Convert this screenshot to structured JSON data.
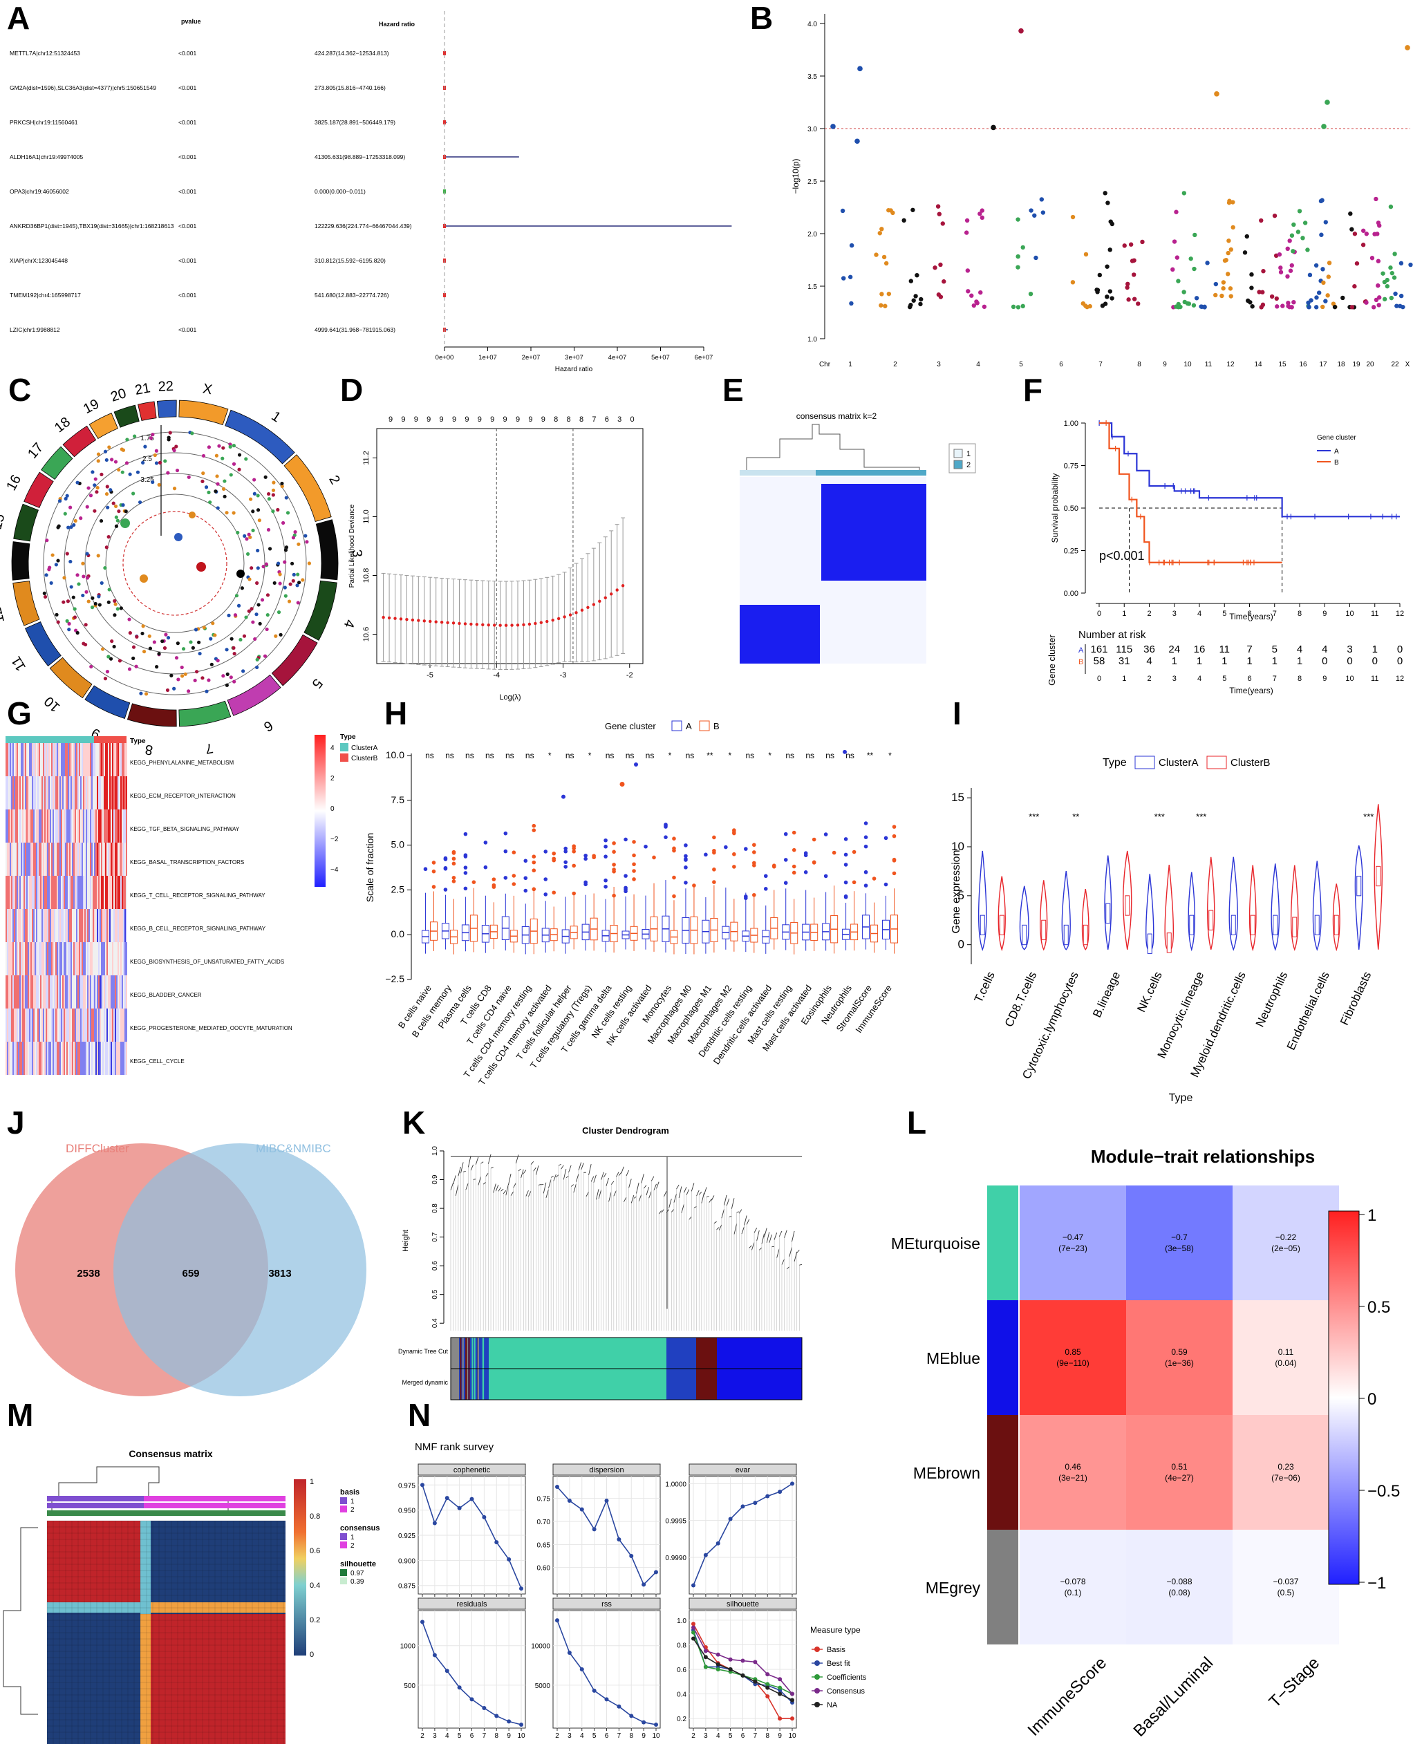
{
  "panel_labels": [
    "A",
    "B",
    "C",
    "D",
    "E",
    "F",
    "G",
    "H",
    "I",
    "J",
    "K",
    "L",
    "M",
    "N"
  ],
  "chart_data": [
    {
      "id": "A",
      "type": "table",
      "columns": [
        "",
        "pvalue",
        "Hazard ratio"
      ],
      "rows": [
        {
          "gene": "METTL7A|chr12:51324453",
          "pvalue": "<0.001",
          "hr": "424.287(14.362−12534.813)",
          "est": 424,
          "hi": 12534
        },
        {
          "gene": "GM2A(dist=1596),SLC36A3(dist=4377)|chr5:150651549",
          "pvalue": "<0.001",
          "hr": "273.805(15.816−4740.166)",
          "est": 273,
          "hi": 4740
        },
        {
          "gene": "PRKCSH|chr19:11560461",
          "pvalue": "<0.001",
          "hr": "3825.187(28.891−506449.179)",
          "est": 3825,
          "hi": 506449
        },
        {
          "gene": "ALDH16A1|chr19:49974005",
          "pvalue": "<0.001",
          "hr": "41305.631(98.889−17253318.099)",
          "est": 41305,
          "hi": 17253318
        },
        {
          "gene": "OPA3|chr19:46056002",
          "pvalue": "<0.001",
          "hr": "0.000(0.000−0.011)",
          "est": 0,
          "hi": 0.011
        },
        {
          "gene": "ANKRD36BP1(dist=1945),TBX19(dist=31665)|chr1:168218613",
          "pvalue": "<0.001",
          "hr": "122229.636(224.774−66467044.439)",
          "est": 122229,
          "hi": 66467044
        },
        {
          "gene": "XIAP|chrX:123045448",
          "pvalue": "<0.001",
          "hr": "310.812(15.592−6195.820)",
          "est": 310,
          "hi": 6195
        },
        {
          "gene": "TMEM192|chr4:165998717",
          "pvalue": "<0.001",
          "hr": "541.680(12.883−22774.726)",
          "est": 541,
          "hi": 22774
        },
        {
          "gene": "LZIC|chr1:9988812",
          "pvalue": "<0.001",
          "hr": "4999.641(31.968−781915.063)",
          "est": 4999,
          "hi": 781915
        }
      ],
      "x_ticks": [
        "0e+00",
        "1e+07",
        "2e+07",
        "3e+07",
        "4e+07",
        "5e+07",
        "6e+07"
      ],
      "x_range": [
        0,
        60000000
      ],
      "xlabel": "Hazard ratio"
    },
    {
      "id": "B",
      "type": "scatter",
      "ylabel": "−log10(p)",
      "y_ticks": [
        "1.0",
        "1.5",
        "2.0",
        "2.5",
        "3.0",
        "3.5",
        "4.0"
      ],
      "y_range": [
        1.0,
        4.0
      ],
      "threshold": 3.0,
      "x_ticks": [
        "Chr",
        "1",
        "2",
        "3",
        "4",
        "5",
        "6",
        "7",
        "8",
        "9",
        "10",
        "11",
        "12",
        "14",
        "15",
        "16",
        "17",
        "18",
        "19",
        "20",
        "22",
        "X"
      ],
      "colors": [
        "#1f4fad",
        "#e08a1e",
        "#111111",
        "#a6143c",
        "#b8228f",
        "#3aa655"
      ]
    },
    {
      "id": "C",
      "type": "scatter",
      "chromosomes": [
        "1",
        "2",
        "3",
        "4",
        "5",
        "6",
        "7",
        "8",
        "9",
        "10",
        "11",
        "12",
        "14",
        "15",
        "16",
        "17",
        "18",
        "19",
        "20",
        "21",
        "22",
        "X"
      ],
      "ring_labels": [
        "1.75",
        "2.5",
        "3.25"
      ]
    },
    {
      "id": "D",
      "type": "line",
      "top_ticks": [
        "9",
        "9",
        "9",
        "9",
        "9",
        "9",
        "9",
        "9",
        "9",
        "9",
        "9",
        "9",
        "9",
        "8",
        "8",
        "8",
        "7",
        "6",
        "3",
        "0"
      ],
      "ylabel": "Partial Likelihood Deviance",
      "xlabel": "Log(λ)",
      "y_ticks": [
        "10.6",
        "10.8",
        "11.0",
        "11.2"
      ],
      "y_range": [
        10.5,
        11.3
      ],
      "x_ticks": [
        "-5",
        "-4",
        "-3",
        "-2"
      ],
      "x_range": [
        -5.8,
        -1.8
      ],
      "vlines": [
        -4.0,
        -2.85
      ],
      "min_value": 10.63
    },
    {
      "id": "E",
      "type": "heatmap",
      "title": "consensus matrix k=2",
      "legend": [
        "1",
        "2"
      ]
    },
    {
      "id": "F",
      "type": "line",
      "ylabel": "Survival probability",
      "xlabel": "Time(years)",
      "y_ticks": [
        "0.00",
        "0.25",
        "0.50",
        "0.75",
        "1.00"
      ],
      "x_ticks": [
        "0",
        "1",
        "2",
        "3",
        "4",
        "5",
        "6",
        "7",
        "8",
        "9",
        "10",
        "11",
        "12"
      ],
      "x_range": [
        0,
        12
      ],
      "pvalue": "p<0.001",
      "legend_title": "Gene cluster",
      "series": [
        {
          "name": "A",
          "color": "#2b35d6",
          "t": [
            0,
            0.5,
            1,
            1.5,
            2,
            3,
            4,
            5,
            7.3,
            7.3,
            12
          ],
          "s": [
            1,
            0.92,
            0.82,
            0.72,
            0.63,
            0.6,
            0.56,
            0.56,
            0.56,
            0.45,
            0.45
          ]
        },
        {
          "name": "B",
          "color": "#f0541e",
          "t": [
            0,
            0.4,
            0.8,
            1.2,
            1.5,
            1.8,
            2,
            7.3
          ],
          "s": [
            1,
            0.85,
            0.7,
            0.55,
            0.45,
            0.3,
            0.18,
            0.18
          ]
        }
      ],
      "risk_title": "Number at risk",
      "risk_ylabel": "Gene cluster",
      "risk": {
        "A": [
          "161",
          "115",
          "36",
          "24",
          "16",
          "11",
          "7",
          "5",
          "4",
          "4",
          "3",
          "1",
          "0"
        ],
        "B": [
          "58",
          "31",
          "4",
          "1",
          "1",
          "1",
          "1",
          "1",
          "1",
          "0",
          "0",
          "0",
          "0"
        ]
      },
      "risk_xlabel": "Time(years)"
    },
    {
      "id": "G",
      "type": "heatmap",
      "annotation": "Type",
      "rows": [
        "KEGG_PHENYLALANINE_METABOLISM",
        "KEGG_ECM_RECEPTOR_INTERACTION",
        "KEGG_TGF_BETA_SIGNALING_PATHWAY",
        "KEGG_BASAL_TRANSCRIPTION_FACTORS",
        "KEGG_T_CELL_RECEPTOR_SIGNALING_PATHWAY",
        "KEGG_B_CELL_RECEPTOR_SIGNALING_PATHWAY",
        "KEGG_BIOSYNTHESIS_OF_UNSATURATED_FATTY_ACIDS",
        "KEGG_BLADDER_CANCER",
        "KEGG_PROGESTERONE_MEDIATED_OOCYTE_MATURATION",
        "KEGG_CELL_CYCLE"
      ],
      "legend_title": "Type",
      "legend": [
        {
          "name": "ClusterA",
          "color": "#5cc8c0"
        },
        {
          "name": "ClusterB",
          "color": "#f0504a"
        }
      ],
      "scale": [
        "4",
        "2",
        "0",
        "−2",
        "−4"
      ]
    },
    {
      "id": "H",
      "type": "bar",
      "subtype": "boxplot",
      "legend_title": "Gene cluster",
      "legend": [
        "A",
        "B"
      ],
      "ylabel": "Scale of fraction",
      "y_ticks": [
        "−2.5",
        "0.0",
        "2.5",
        "5.0",
        "7.5",
        "10.0"
      ],
      "y_range": [
        -2.5,
        10.0
      ],
      "categories": [
        "B cells naive",
        "B cells memory",
        "Plasma cells",
        "T cells CD8",
        "T cells CD4 naive",
        "T cells CD4 memory resting",
        "T cells CD4 memory activated",
        "T cells follicular helper",
        "T cells regulatory (Tregs)",
        "T cells gamma delta",
        "NK cells resting",
        "NK cells activated",
        "Monocytes",
        "Macrophages M0",
        "Macrophages M1",
        "Macrophages M2",
        "Dendritic cells resting",
        "Dendritic cells activated",
        "Mast cells resting",
        "Mast cells activated",
        "Eosinophils",
        "Neutrophils",
        "StromalScore",
        "ImmuneScore"
      ],
      "sig": [
        "ns",
        "ns",
        "ns",
        "ns",
        "ns",
        "ns",
        "*",
        "ns",
        "*",
        "ns",
        "ns",
        "ns",
        "*",
        "ns",
        "**",
        "*",
        "ns",
        "*",
        "ns",
        "ns",
        "ns",
        "ns",
        "**",
        "*"
      ]
    },
    {
      "id": "I",
      "type": "bar",
      "subtype": "violin",
      "legend_title": "Type",
      "legend": [
        {
          "name": "ClusterA",
          "color": "#2b35d6"
        },
        {
          "name": "ClusterB",
          "color": "#e8252a"
        }
      ],
      "ylabel": "Gene expression",
      "xlabel": "Type",
      "y_ticks": [
        "0",
        "5",
        "10",
        "15"
      ],
      "y_range": [
        -2,
        16
      ],
      "categories": [
        "T.cells",
        "CD8.T.cells",
        "Cytotoxic.lymphocytes",
        "B.lineage",
        "NK.cells",
        "Monocytic.lineage",
        "Myeloid.dendritic.cells",
        "Neutrophils",
        "Endothelial.cells",
        "Fibroblasts"
      ],
      "sig": [
        "",
        "***",
        "**",
        "",
        "***",
        "***",
        "",
        "",
        "",
        "***"
      ],
      "medianA": [
        2.0,
        1.0,
        1.0,
        3.2,
        0.1,
        2.0,
        2.0,
        2.0,
        2.0,
        6.0
      ],
      "medianB": [
        2.0,
        1.5,
        1.0,
        4.0,
        0.2,
        2.5,
        2.0,
        1.8,
        2.0,
        7.0
      ]
    },
    {
      "id": "J",
      "type": "other",
      "subtype": "venn",
      "sets": [
        {
          "name": "DIFFCluster",
          "only": "2538",
          "color": "#e8807a"
        },
        {
          "name": "MIBC&NMIBC",
          "only": "3813",
          "color": "#8fbfe0"
        }
      ],
      "overlap": "659"
    },
    {
      "id": "K",
      "type": "other",
      "subtype": "dendrogram",
      "title": "Cluster Dendrogram",
      "ylabel": "Height",
      "y_ticks": [
        "0.4",
        "0.5",
        "0.6",
        "0.7",
        "0.8",
        "0.9",
        "1.0"
      ],
      "track_labels": [
        "Dynamic Tree Cut",
        "Merged dynamic"
      ]
    },
    {
      "id": "L",
      "type": "heatmap",
      "title": "Module−trait relationships",
      "rows": [
        "MEturquoise",
        "MEblue",
        "MEbrown",
        "MEgrey"
      ],
      "row_colors": [
        "#40d0a8",
        "#1010e8",
        "#6b1010",
        "#808080"
      ],
      "columns": [
        "ImmuneScore",
        "Basal/Luminal",
        "T−Stage"
      ],
      "values": [
        [
          -0.47,
          -0.7,
          -0.22
        ],
        [
          0.85,
          0.59,
          0.11
        ],
        [
          0.46,
          0.51,
          0.23
        ],
        [
          -0.078,
          -0.088,
          -0.037
        ]
      ],
      "labels": [
        [
          "−0.47",
          "(7e−23)",
          "−0.7",
          "(3e−58)",
          "−0.22",
          "(2e−05)"
        ],
        [
          "0.85",
          "(9e−110)",
          "0.59",
          "(1e−36)",
          "0.11",
          "(0.04)"
        ],
        [
          "0.46",
          "(3e−21)",
          "0.51",
          "(4e−27)",
          "0.23",
          "(7e−06)"
        ],
        [
          "−0.078",
          "(0.1)",
          "−0.088",
          "(0.08)",
          "−0.037",
          "(0.5)"
        ]
      ],
      "scale": [
        "1",
        "0.5",
        "0",
        "−0.5",
        "−1"
      ]
    },
    {
      "id": "M",
      "type": "heatmap",
      "title": "Consensus matrix",
      "scale": [
        "1",
        "0.8",
        "0.6",
        "0.4",
        "0.2",
        "0"
      ],
      "legends": [
        {
          "title": "basis",
          "items": [
            {
              "name": "1",
              "color": "#7f4fd0"
            },
            {
              "name": "2",
              "color": "#e040e0"
            }
          ]
        },
        {
          "title": "consensus",
          "items": [
            {
              "name": "1",
              "color": "#7f4fd0"
            },
            {
              "name": "2",
              "color": "#e040e0"
            }
          ]
        },
        {
          "title": "silhouette",
          "items": [
            {
              "name": "0.97",
              "color": "#1f7a3a"
            },
            {
              "name": "0.39",
              "color": "#c8ecd0"
            }
          ]
        }
      ]
    },
    {
      "id": "N",
      "type": "line",
      "title": "NMF rank survey",
      "x": [
        2,
        3,
        4,
        5,
        6,
        7,
        8,
        9,
        10
      ],
      "facets": [
        {
          "name": "cophenetic",
          "y_ticks": [
            "0.875",
            "0.900",
            "0.925",
            "0.950",
            "0.975"
          ],
          "y_range": [
            0.87,
            0.98
          ],
          "values": [
            0.975,
            0.937,
            0.962,
            0.952,
            0.961,
            0.943,
            0.918,
            0.901,
            0.872
          ]
        },
        {
          "name": "dispersion",
          "y_ticks": [
            "0.60",
            "0.65",
            "0.70",
            "0.75"
          ],
          "y_range": [
            0.55,
            0.79
          ],
          "values": [
            0.775,
            0.745,
            0.726,
            0.683,
            0.745,
            0.661,
            0.625,
            0.563,
            0.59
          ]
        },
        {
          "name": "evar",
          "y_ticks": [
            "0.9990",
            "0.9995",
            "1.0000"
          ],
          "y_range": [
            0.99855,
            1.00005
          ],
          "values": [
            0.99862,
            0.99903,
            0.99919,
            0.99952,
            0.99969,
            0.99974,
            0.99983,
            0.99989,
            1.0
          ]
        },
        {
          "name": "residuals",
          "y_ticks": [
            "500",
            "1000"
          ],
          "y_range": [
            0,
            1400
          ],
          "values": [
            1300,
            880,
            680,
            470,
            320,
            210,
            110,
            40,
            0
          ]
        },
        {
          "name": "rss",
          "y_ticks": [
            "5000",
            "10000"
          ],
          "y_range": [
            0,
            14000
          ],
          "values": [
            13200,
            9100,
            7000,
            4300,
            3200,
            2300,
            1100,
            300,
            0
          ]
        },
        {
          "name": "silhouette",
          "y_ticks": [
            "0.2",
            "0.4",
            "0.6",
            "0.8",
            "1.0"
          ],
          "y_range": [
            0.15,
            1.05
          ],
          "multi": [
            {
              "name": "Basis",
              "color": "#d8342a",
              "values": [
                0.97,
                0.78,
                0.65,
                0.6,
                0.55,
                0.5,
                0.38,
                0.2,
                0.2
              ]
            },
            {
              "name": "Best fit",
              "color": "#2a47a0",
              "values": [
                0.92,
                0.62,
                0.62,
                0.6,
                0.55,
                0.48,
                0.47,
                0.43,
                0.33
              ]
            },
            {
              "name": "Coefficients",
              "color": "#2f9a3a",
              "values": [
                0.9,
                0.62,
                0.6,
                0.58,
                0.55,
                0.52,
                0.48,
                0.45,
                0.4
              ]
            },
            {
              "name": "Consensus",
              "color": "#7a2a8a",
              "values": [
                0.94,
                0.75,
                0.72,
                0.68,
                0.67,
                0.66,
                0.56,
                0.52,
                0.4
              ]
            },
            {
              "name": "NA",
              "color": "#222222",
              "values": [
                0.85,
                0.7,
                0.64,
                0.6,
                0.55,
                0.5,
                0.45,
                0.4,
                0.35
              ]
            }
          ]
        }
      ],
      "legend_title": "Measure type"
    }
  ]
}
